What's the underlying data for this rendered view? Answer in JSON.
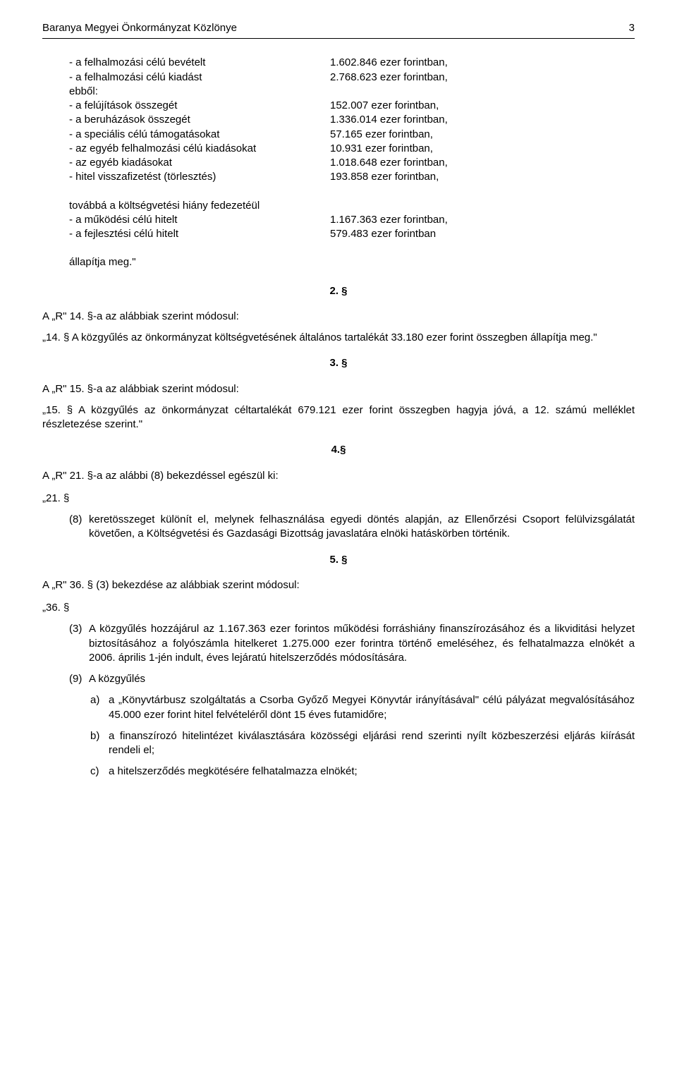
{
  "header": {
    "title": "Baranya Megyei Önkormányzat Közlönye",
    "page_number": "3"
  },
  "budget": {
    "rows": [
      {
        "label": "- a felhalmozási célú bevételt",
        "value": "1.602.846 ezer forintban,"
      },
      {
        "label": "- a felhalmozási célú kiadást",
        "value": "2.768.623 ezer forintban,"
      },
      {
        "label": "ebből:",
        "value": ""
      },
      {
        "label": "- a felújítások összegét",
        "value": "152.007 ezer forintban,"
      },
      {
        "label": "- a beruházások összegét",
        "value": "1.336.014 ezer forintban,"
      },
      {
        "label": "- a speciális célú támogatásokat",
        "value": "57.165 ezer forintban,"
      },
      {
        "label": "- az egyéb felhalmozási célú kiadásokat",
        "value": "10.931 ezer forintban,"
      },
      {
        "label": "- az egyéb kiadásokat",
        "value": "1.018.648 ezer forintban,"
      },
      {
        "label": "- hitel visszafizetést (törlesztés)",
        "value": "193.858 ezer forintban,"
      }
    ],
    "deficit_intro": "továbbá a költségvetési hiány fedezetéül",
    "deficit_rows": [
      {
        "label": "- a működési célú hitelt",
        "value": "1.167.363 ezer forintban,"
      },
      {
        "label": "- a fejlesztési célú hitelt",
        "value": "579.483 ezer forintban"
      }
    ],
    "closing": "állapítja meg.\""
  },
  "s2": {
    "num": "2. §",
    "heading": "A „R\" 14. §-a az alábbiak szerint módosul:",
    "text": "„14. § A közgyűlés az önkormányzat költségvetésének általános tartalékát 33.180 ezer  forint  összegben állapítja meg.\""
  },
  "s3": {
    "num": "3. §",
    "heading": "A „R\" 15. §-a az alábbiak szerint módosul:",
    "text": "„15. § A közgyűlés az önkormányzat céltartalékát 679.121 ezer forint összegben hagyja jóvá, a 12. számú melléklet részletezése szerint.\""
  },
  "s4": {
    "num": "4.§",
    "heading": "A „R\" 21. §-a az alábbi (8) bekezdéssel egészül ki:",
    "p21": "„21. §",
    "item_marker": "(8)",
    "item_text": "keretösszeget különít el, melynek felhasználása egyedi döntés alapján, az Ellenőrzési Csoport felülvizsgálatát követően, a Költségvetési és Gazdasági Bizottság javaslatára elnöki hatáskörben történik."
  },
  "s5": {
    "num": "5. §",
    "heading": "A „R\" 36. § (3) bekezdése az alábbiak szerint módosul:",
    "p36": "„36. §",
    "item3_marker": "(3)",
    "item3_text": "A közgyűlés hozzájárul az 1.167.363 ezer forintos működési forráshiány finanszírozásához és a likviditási helyzet biztosításához a folyószámla hitelkeret 1.275.000 ezer forintra történő emeléséhez, és felhatalmazza elnökét a 2006. április 1-jén indult, éves lejáratú hitelszerződés módosítására.",
    "item9_marker": "(9)",
    "item9_text": "A közgyűlés",
    "sub_a_marker": "a)",
    "sub_a_text": "a „Könyvtárbusz szolgáltatás a Csorba Győző Megyei Könyvtár irányításával\" célú pályázat megvalósításához 45.000 ezer forint hitel felvételéről dönt 15 éves futamidőre;",
    "sub_b_marker": "b)",
    "sub_b_text": "a finanszírozó hitelintézet kiválasztására közösségi eljárási rend szerinti nyílt közbeszerzési eljárás kiírását rendeli el;",
    "sub_c_marker": "c)",
    "sub_c_text": "a hitelszerződés megkötésére felhatalmazza elnökét;"
  }
}
